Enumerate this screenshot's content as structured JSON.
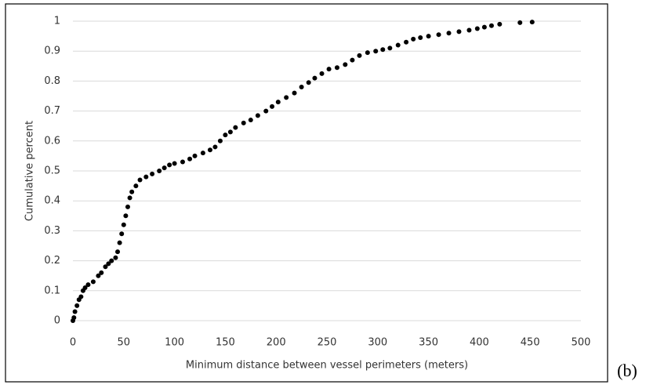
{
  "chart_data": {
    "type": "scatter",
    "xlabel": "Minimum distance between vessel perimeters (meters)",
    "ylabel": "Cumulative percent",
    "annotation": "(b)",
    "color": "#000000",
    "grid": true,
    "xlim": [
      0,
      500
    ],
    "xticks": [
      0,
      50,
      100,
      150,
      200,
      250,
      300,
      350,
      400,
      450,
      500
    ],
    "ylim": [
      0,
      1
    ],
    "yticks": [
      0,
      0.1,
      0.2,
      0.3,
      0.4,
      0.5,
      0.6,
      0.7,
      0.8,
      0.9,
      1
    ],
    "x": [
      0,
      1,
      2,
      4,
      6,
      8,
      10,
      12,
      15,
      20,
      25,
      28,
      32,
      35,
      38,
      42,
      44,
      46,
      48,
      50,
      52,
      54,
      56,
      58,
      62,
      66,
      72,
      78,
      85,
      90,
      95,
      100,
      108,
      115,
      120,
      128,
      135,
      140,
      145,
      150,
      155,
      160,
      168,
      175,
      182,
      190,
      196,
      202,
      210,
      218,
      225,
      232,
      238,
      245,
      252,
      260,
      268,
      275,
      282,
      290,
      298,
      305,
      312,
      320,
      328,
      335,
      342,
      350,
      360,
      370,
      380,
      390,
      398,
      405,
      412,
      420,
      440,
      452
    ],
    "values": [
      0,
      0.01,
      0.03,
      0.05,
      0.07,
      0.08,
      0.1,
      0.11,
      0.12,
      0.13,
      0.15,
      0.16,
      0.18,
      0.19,
      0.2,
      0.21,
      0.23,
      0.26,
      0.29,
      0.32,
      0.35,
      0.38,
      0.41,
      0.43,
      0.45,
      0.47,
      0.48,
      0.49,
      0.5,
      0.51,
      0.52,
      0.525,
      0.53,
      0.54,
      0.55,
      0.56,
      0.57,
      0.58,
      0.6,
      0.62,
      0.63,
      0.645,
      0.66,
      0.67,
      0.685,
      0.7,
      0.715,
      0.73,
      0.745,
      0.76,
      0.78,
      0.795,
      0.81,
      0.825,
      0.84,
      0.845,
      0.855,
      0.87,
      0.885,
      0.895,
      0.9,
      0.905,
      0.91,
      0.92,
      0.93,
      0.94,
      0.945,
      0.95,
      0.955,
      0.96,
      0.965,
      0.97,
      0.975,
      0.98,
      0.985,
      0.99,
      0.995,
      0.997
    ]
  }
}
